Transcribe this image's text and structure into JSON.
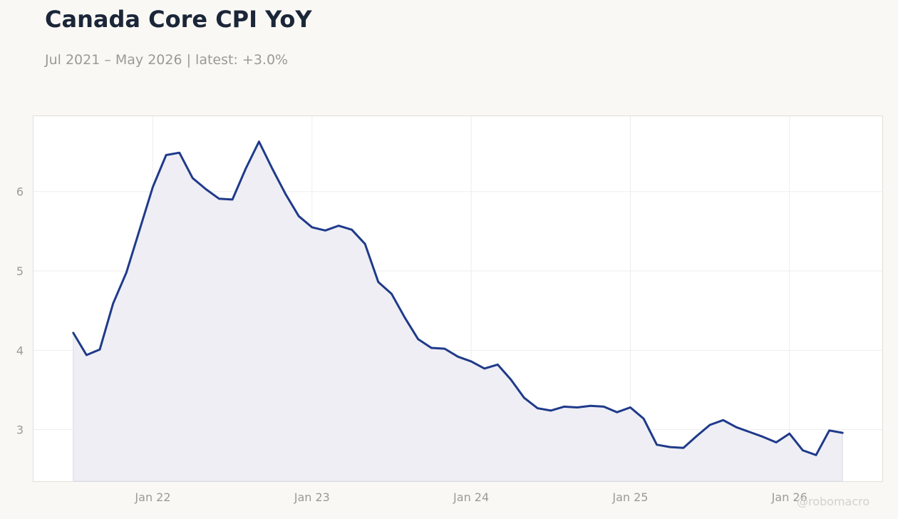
{
  "title": "Canada Core CPI YoY",
  "subtitle": "Jul 2021 – May 2026 | latest: +3.0%",
  "watermark": "@robomacro",
  "colors": {
    "line": "#1f3a8a",
    "fill": "#eeeef4",
    "grid": "#ededed",
    "background": "#f9f8f5",
    "plot_background": "#ffffff",
    "axis_text": "#9b9a95",
    "title": "#1b2638"
  },
  "chart_data": {
    "type": "area",
    "title": "Canada Core CPI YoY",
    "subtitle": "Jul 2021 – May 2026 | latest: +3.0%",
    "xlabel": "",
    "ylabel": "",
    "x_tick_labels": [
      "Jan 22",
      "Jan 23",
      "Jan 24",
      "Jan 25",
      "Jan 26"
    ],
    "x_tick_dates": [
      "2022-01",
      "2023-01",
      "2024-01",
      "2025-01",
      "2026-01"
    ],
    "y_ticks": [
      3,
      4,
      5,
      6
    ],
    "ylim": [
      2.35,
      6.95
    ],
    "xlim": [
      "2021-04",
      "2026-08"
    ],
    "grid": true,
    "legend": "none",
    "series": [
      {
        "x": [
          "2021-07",
          "2021-08",
          "2021-09",
          "2021-10",
          "2021-11",
          "2021-12",
          "2022-01",
          "2022-02",
          "2022-03",
          "2022-04",
          "2022-05",
          "2022-06",
          "2022-07",
          "2022-08",
          "2022-09",
          "2022-10",
          "2022-11",
          "2022-12",
          "2023-01",
          "2023-02",
          "2023-03",
          "2023-04",
          "2023-05",
          "2023-06",
          "2023-07",
          "2023-08",
          "2023-09",
          "2023-10",
          "2023-11",
          "2023-12",
          "2024-01",
          "2024-02",
          "2024-03",
          "2024-04",
          "2024-05",
          "2024-06",
          "2024-07",
          "2024-08",
          "2024-09",
          "2024-10",
          "2024-11",
          "2024-12",
          "2025-01",
          "2025-02",
          "2025-03",
          "2025-04",
          "2025-05",
          "2025-06",
          "2025-07",
          "2025-08",
          "2025-09",
          "2025-10",
          "2025-11",
          "2025-12",
          "2026-01",
          "2026-02",
          "2026-03",
          "2026-04",
          "2026-05"
        ],
        "values": [
          4.22,
          3.94,
          4.01,
          4.59,
          4.98,
          5.52,
          6.06,
          6.46,
          6.49,
          6.17,
          6.03,
          5.91,
          5.9,
          6.29,
          6.63,
          6.29,
          5.97,
          5.69,
          5.55,
          5.51,
          5.57,
          5.52,
          5.34,
          4.86,
          4.71,
          4.41,
          4.14,
          4.03,
          4.02,
          3.92,
          3.86,
          3.77,
          3.82,
          3.63,
          3.4,
          3.27,
          3.24,
          3.29,
          3.28,
          3.3,
          3.29,
          3.22,
          3.28,
          3.14,
          2.81,
          2.78,
          2.77,
          2.92,
          3.06,
          3.12,
          3.03,
          2.97,
          2.91,
          2.84,
          2.95,
          2.74,
          2.68,
          2.99,
          2.96
        ]
      }
    ]
  }
}
